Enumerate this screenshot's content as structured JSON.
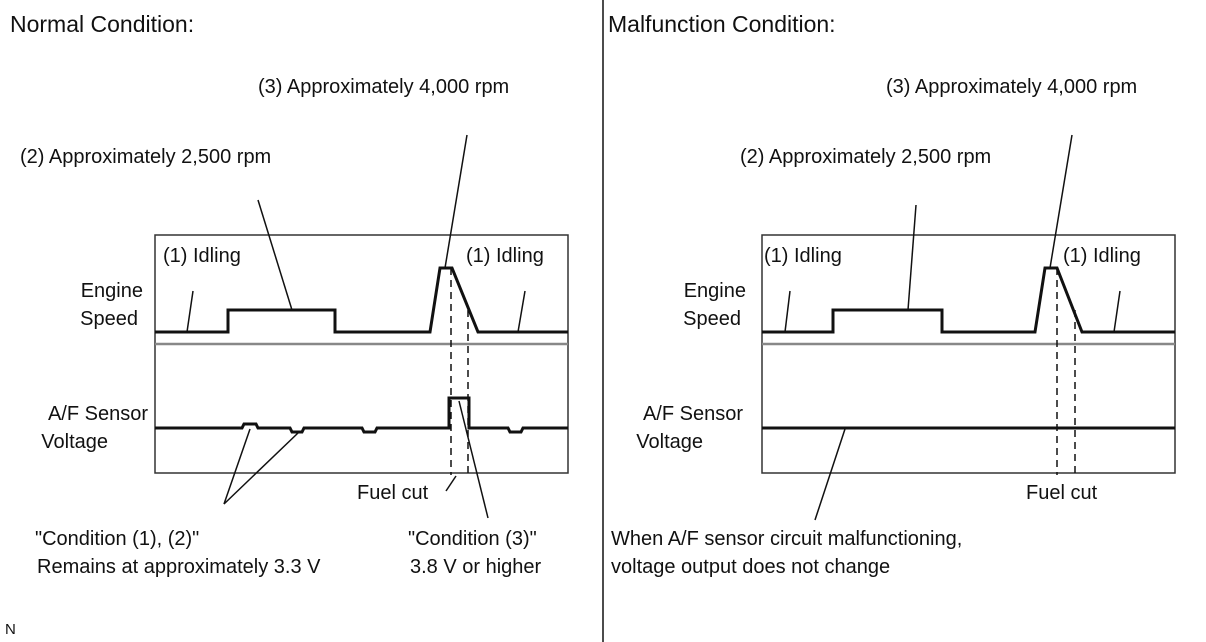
{
  "normal": {
    "title": "Normal Condition:",
    "callout_4000": "(3) Approximately 4,000 rpm",
    "callout_2500": "(2) Approximately 2,500 rpm",
    "idling_left": "(1) Idling",
    "idling_right": "(1) Idling",
    "engine_speed_line1": "Engine",
    "engine_speed_line2": "Speed",
    "af_sensor_line1": "A/F Sensor",
    "af_sensor_line2": "Voltage",
    "fuel_cut": "Fuel cut",
    "condition12_line1": "\"Condition (1), (2)\"",
    "condition12_line2": "Remains at approximately 3.3 V",
    "condition3_line1": "\"Condition (3)\"",
    "condition3_line2": "3.8 V or higher"
  },
  "malfunction": {
    "title": "Malfunction Condition:",
    "callout_4000": "(3) Approximately 4,000 rpm",
    "callout_2500": "(2) Approximately 2,500 rpm",
    "idling_left": "(1) Idling",
    "idling_right": "(1) Idling",
    "engine_speed_line1": "Engine",
    "engine_speed_line2": "Speed",
    "af_sensor_line1": "A/F Sensor",
    "af_sensor_line2": "Voltage",
    "fuel_cut": "Fuel cut",
    "note_line1": "When A/F sensor circuit malfunctioning,",
    "note_line2": "voltage output does not change"
  },
  "corner_mark": "N"
}
